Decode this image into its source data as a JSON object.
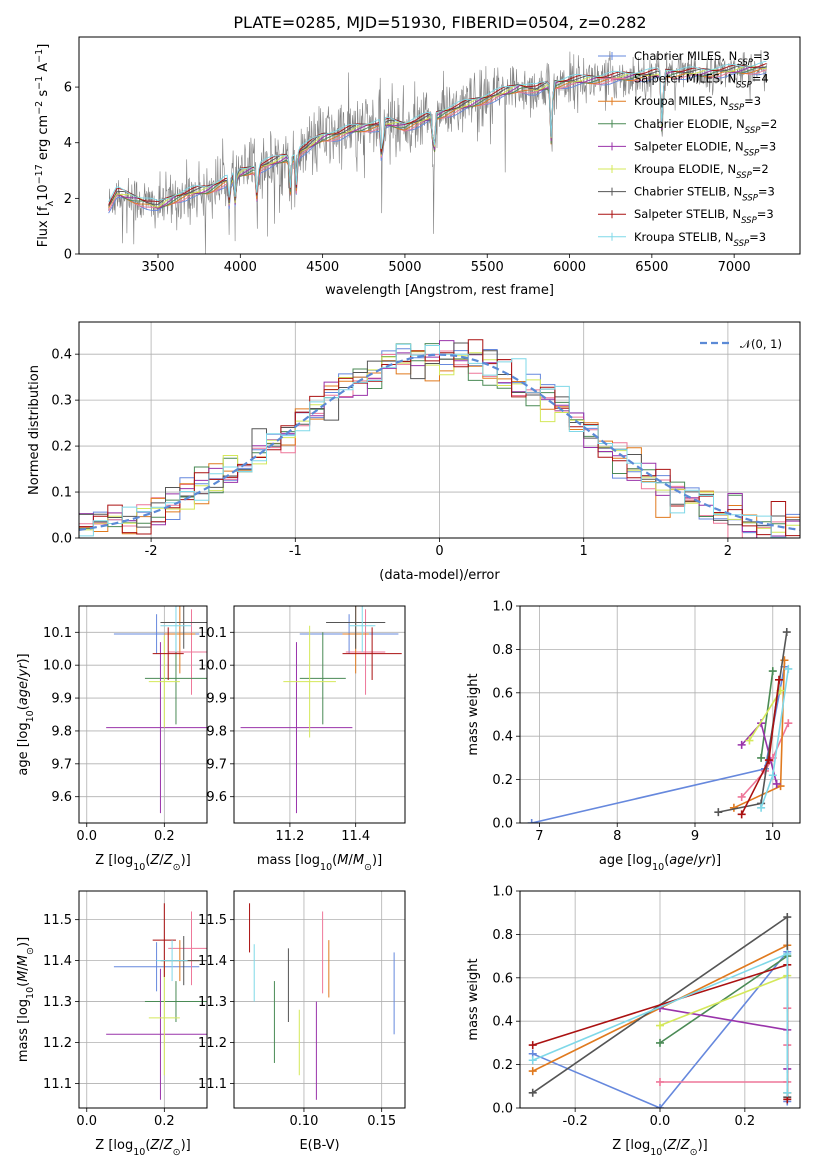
{
  "figure": {
    "title": "PLATE=0285, MJD=51930, FIBERID=0504, z=0.282"
  },
  "series_styles": [
    {
      "name": "Chabrier MILES, N_SSP=3",
      "color": "#6688dd"
    },
    {
      "name": "Salpeter MILES, N_SSP=4",
      "color": "#ee7799"
    },
    {
      "name": "Kroupa MILES, N_SSP=3",
      "color": "#e07a1f"
    },
    {
      "name": "Chabrier ELODIE, N_SSP=2",
      "color": "#4a8a55"
    },
    {
      "name": "Salpeter ELODIE, N_SSP=3",
      "color": "#9933aa"
    },
    {
      "name": "Kroupa ELODIE, N_SSP=2",
      "color": "#d4e85a"
    },
    {
      "name": "Chabrier STELIB, N_SSP=3",
      "color": "#555555"
    },
    {
      "name": "Salpeter STELIB, N_SSP=3",
      "color": "#aa1111"
    },
    {
      "name": "Kroupa STELIB, N_SSP=3",
      "color": "#7fd8e8"
    }
  ],
  "chart_data": [
    {
      "id": "spectrum",
      "type": "line",
      "xlabel": "wavelength [Angstrom, rest frame]",
      "ylabel": "Flux [f_λ 10^-17 erg cm^-2 s^-1 A^-1]",
      "xlim": [
        3020,
        7400
      ],
      "ylim": [
        0,
        7.8
      ],
      "xticks": [
        3500,
        4000,
        4500,
        5000,
        5500,
        6000,
        6500,
        7000
      ],
      "yticks": [
        0,
        2,
        4,
        6
      ],
      "grid": false,
      "legend": "top-right",
      "legend_entries": [
        "Chabrier MILES, N_SSP=3",
        "Salpeter MILES, N_SSP=4",
        "Kroupa MILES, N_SSP=3",
        "Chabrier ELODIE, N_SSP=2",
        "Salpeter ELODIE, N_SSP=3",
        "Kroupa ELODIE, N_SSP=2",
        "Chabrier STELIB, N_SSP=3",
        "Salpeter STELIB, N_SSP=3",
        "Kroupa STELIB, N_SSP=3"
      ],
      "data_color": "#808080",
      "continuum_knots": {
        "x": [
          3200,
          3250,
          3300,
          3400,
          3500,
          3600,
          3700,
          3800,
          3900,
          4000,
          4100,
          4200,
          4300,
          4400,
          4500,
          4600,
          4700,
          4800,
          4900,
          5000,
          5100,
          5200,
          5300,
          5400,
          5500,
          5600,
          5700,
          5800,
          5900,
          6000,
          6200,
          6400,
          6600,
          6800,
          7000,
          7200
        ],
        "y": [
          1.7,
          2.2,
          2.1,
          1.9,
          1.7,
          2.0,
          2.2,
          2.3,
          2.6,
          2.9,
          3.1,
          3.3,
          3.5,
          3.8,
          4.2,
          4.3,
          4.5,
          4.6,
          4.7,
          4.6,
          4.8,
          5.0,
          5.2,
          5.4,
          5.6,
          5.8,
          6.0,
          5.9,
          6.1,
          6.2,
          6.3,
          6.4,
          6.5,
          6.5,
          6.6,
          6.7
        ]
      },
      "absorption_lines": [
        3934,
        3969,
        4102,
        4304,
        4340,
        4861,
        5175,
        5890,
        6563
      ]
    },
    {
      "id": "residual_histogram",
      "type": "line",
      "xlabel": "(data-model)/error",
      "ylabel": "Normed distribution",
      "xlim": [
        -2.5,
        2.5
      ],
      "ylim": [
        0,
        0.47
      ],
      "xticks": [
        -2,
        -1,
        0,
        1,
        2
      ],
      "yticks": [
        0.0,
        0.1,
        0.2,
        0.3,
        0.4
      ],
      "grid": true,
      "legend": "top-right",
      "reference": {
        "label": "𝒩(0, 1)",
        "mean": 0,
        "sigma": 1,
        "style": "dashed",
        "color": "#5b8ad6"
      },
      "bins": [
        -2.5,
        2.5,
        50
      ]
    },
    {
      "id": "age_vs_Z",
      "type": "scatter",
      "xlabel": "Z [log10(Z/Z⊙)]",
      "ylabel": "age [log10(age/yr)]",
      "xlim": [
        -0.02,
        0.31
      ],
      "ylim": [
        9.52,
        10.18
      ],
      "xticks": [
        0.0,
        0.2
      ],
      "yticks": [
        9.6,
        9.7,
        9.8,
        9.9,
        10.0,
        10.1
      ],
      "grid": true,
      "points": [
        {
          "x": 0.18,
          "y": 10.095,
          "xerr": 0.11,
          "yerr": 0.06
        },
        {
          "x": 0.27,
          "y": 10.04,
          "xerr": 0.06,
          "yerr": 0.13
        },
        {
          "x": 0.24,
          "y": 10.095,
          "xerr": 0.04,
          "yerr": 0.12
        },
        {
          "x": 0.23,
          "y": 9.96,
          "xerr": 0.08,
          "yerr": 0.14
        },
        {
          "x": 0.19,
          "y": 9.81,
          "xerr": 0.14,
          "yerr": 0.26
        },
        {
          "x": 0.2,
          "y": 9.95,
          "xerr": 0.04,
          "yerr": 0.14
        },
        {
          "x": 0.25,
          "y": 10.13,
          "xerr": 0.06,
          "yerr": 0.08
        },
        {
          "x": 0.21,
          "y": 10.035,
          "xerr": 0.04,
          "yerr": 0.08
        },
        {
          "x": 0.23,
          "y": 10.12,
          "xerr": 0.04,
          "yerr": 0.08
        }
      ]
    },
    {
      "id": "age_vs_mass",
      "type": "scatter",
      "xlabel": "mass [log10(M/M⊙)]",
      "ylabel": "",
      "xlim": [
        11.03,
        11.55
      ],
      "ylim": [
        9.52,
        10.18
      ],
      "xticks": [
        11.2,
        11.4
      ],
      "yticks": [
        9.6,
        9.7,
        9.8,
        9.9,
        10.0,
        10.1
      ],
      "grid": true,
      "points": [
        {
          "x": 11.38,
          "y": 10.095,
          "xerr": 0.15,
          "yerr": 0.06
        },
        {
          "x": 11.43,
          "y": 10.04,
          "xerr": 0.06,
          "yerr": 0.13
        },
        {
          "x": 11.4,
          "y": 10.095,
          "xerr": 0.04,
          "yerr": 0.12
        },
        {
          "x": 11.3,
          "y": 9.96,
          "xerr": 0.07,
          "yerr": 0.14
        },
        {
          "x": 11.22,
          "y": 9.81,
          "xerr": 0.17,
          "yerr": 0.26
        },
        {
          "x": 11.26,
          "y": 9.95,
          "xerr": 0.08,
          "yerr": 0.17
        },
        {
          "x": 11.4,
          "y": 10.13,
          "xerr": 0.09,
          "yerr": 0.08
        },
        {
          "x": 11.45,
          "y": 10.035,
          "xerr": 0.09,
          "yerr": 0.08
        },
        {
          "x": 11.42,
          "y": 10.12,
          "xerr": 0.04,
          "yerr": 0.08
        }
      ]
    },
    {
      "id": "weight_vs_age",
      "type": "line",
      "xlabel": "age [log10(age/yr)]",
      "ylabel": "mass weight",
      "xlim": [
        6.75,
        10.35
      ],
      "ylim": [
        0,
        1.0
      ],
      "xticks": [
        7,
        8,
        9,
        10
      ],
      "yticks": [
        0.0,
        0.2,
        0.4,
        0.6,
        0.8,
        1.0
      ],
      "grid": true,
      "series": [
        {
          "x": [
            6.9,
            9.9,
            10.15
          ],
          "y": [
            0.0,
            0.25,
            0.72
          ]
        },
        {
          "x": [
            9.6,
            9.9,
            10.0,
            10.2
          ],
          "y": [
            0.12,
            0.24,
            0.3,
            0.46
          ]
        },
        {
          "x": [
            9.5,
            10.1,
            10.15
          ],
          "y": [
            0.07,
            0.17,
            0.75
          ]
        },
        {
          "x": [
            9.85,
            10.0
          ],
          "y": [
            0.3,
            0.7
          ]
        },
        {
          "x": [
            9.6,
            9.85,
            10.05
          ],
          "y": [
            0.36,
            0.46,
            0.18
          ]
        },
        {
          "x": [
            9.7,
            10.1
          ],
          "y": [
            0.38,
            0.61
          ]
        },
        {
          "x": [
            9.3,
            9.85,
            10.18
          ],
          "y": [
            0.05,
            0.09,
            0.88
          ]
        },
        {
          "x": [
            9.6,
            9.95,
            10.08
          ],
          "y": [
            0.04,
            0.29,
            0.66
          ]
        },
        {
          "x": [
            9.85,
            10.0,
            10.2
          ],
          "y": [
            0.07,
            0.22,
            0.71
          ]
        }
      ]
    },
    {
      "id": "mass_vs_Z",
      "type": "scatter",
      "xlabel": "Z [log10(Z/Z⊙)]",
      "ylabel": "mass [log10(M/M⊙)]",
      "xlim": [
        -0.02,
        0.31
      ],
      "ylim": [
        11.04,
        11.57
      ],
      "xticks": [
        0.0,
        0.2
      ],
      "yticks": [
        11.1,
        11.2,
        11.3,
        11.4,
        11.5
      ],
      "grid": true,
      "points": [
        {
          "x": 0.18,
          "y": 11.385,
          "xerr": 0.11,
          "yerr": 0.06
        },
        {
          "x": 0.27,
          "y": 11.43,
          "xerr": 0.06,
          "yerr": 0.09
        },
        {
          "x": 0.24,
          "y": 11.4,
          "xerr": 0.05,
          "yerr": 0.05
        },
        {
          "x": 0.23,
          "y": 11.3,
          "xerr": 0.08,
          "yerr": 0.05
        },
        {
          "x": 0.19,
          "y": 11.22,
          "xerr": 0.14,
          "yerr": 0.16
        },
        {
          "x": 0.2,
          "y": 11.26,
          "xerr": 0.04,
          "yerr": 0.14
        },
        {
          "x": 0.25,
          "y": 11.4,
          "xerr": 0.06,
          "yerr": 0.06
        },
        {
          "x": 0.2,
          "y": 11.45,
          "xerr": 0.03,
          "yerr": 0.09
        },
        {
          "x": 0.22,
          "y": 11.4,
          "xerr": 0.04,
          "yerr": 0.05
        }
      ]
    },
    {
      "id": "mass_vs_ebv",
      "type": "scatter",
      "xlabel": "E(B-V)",
      "ylabel": "",
      "xlim": [
        0.055,
        0.165
      ],
      "ylim": [
        11.04,
        11.57
      ],
      "xticks": [
        0.05,
        0.1,
        0.15
      ],
      "yticks": [
        11.1,
        11.2,
        11.3,
        11.4,
        11.5
      ],
      "grid": true,
      "points": [
        {
          "x": 0.158,
          "y": 11.32,
          "xerr": 0,
          "yerr": 0.1
        },
        {
          "x": 0.112,
          "y": 11.42,
          "xerr": 0,
          "yerr": 0.1
        },
        {
          "x": 0.116,
          "y": 11.38,
          "xerr": 0,
          "yerr": 0.07
        },
        {
          "x": 0.081,
          "y": 11.25,
          "xerr": 0,
          "yerr": 0.1
        },
        {
          "x": 0.108,
          "y": 11.18,
          "xerr": 0,
          "yerr": 0.12
        },
        {
          "x": 0.097,
          "y": 11.2,
          "xerr": 0,
          "yerr": 0.08
        },
        {
          "x": 0.09,
          "y": 11.34,
          "xerr": 0,
          "yerr": 0.09
        },
        {
          "x": 0.065,
          "y": 11.48,
          "xerr": 0,
          "yerr": 0.06
        },
        {
          "x": 0.068,
          "y": 11.37,
          "xerr": 0,
          "yerr": 0.07
        }
      ]
    },
    {
      "id": "weight_vs_Z",
      "type": "line",
      "xlabel": "Z [log10(Z/Z⊙)]",
      "ylabel": "mass weight",
      "xlim": [
        -0.33,
        0.33
      ],
      "ylim": [
        0,
        1.0
      ],
      "xticks": [
        -0.2,
        0.0,
        0.2
      ],
      "yticks": [
        0.0,
        0.2,
        0.4,
        0.6,
        0.8,
        1.0
      ],
      "grid": true,
      "series": [
        {
          "x": [
            -0.3,
            0.0,
            0.3,
            0.3
          ],
          "y": [
            0.25,
            0.0,
            0.72,
            0.03
          ]
        },
        {
          "x": [
            0.0,
            0.3,
            0.3,
            0.3
          ],
          "y": [
            0.12,
            0.12,
            0.29,
            0.46
          ]
        },
        {
          "x": [
            -0.3,
            0.3,
            0.3
          ],
          "y": [
            0.17,
            0.75,
            0.07
          ]
        },
        {
          "x": [
            0.0,
            0.3
          ],
          "y": [
            0.3,
            0.7
          ]
        },
        {
          "x": [
            0.0,
            0.3,
            0.3
          ],
          "y": [
            0.46,
            0.36,
            0.18
          ]
        },
        {
          "x": [
            0.0,
            0.3
          ],
          "y": [
            0.38,
            0.61
          ]
        },
        {
          "x": [
            -0.3,
            0.3,
            0.3
          ],
          "y": [
            0.07,
            0.88,
            0.05
          ]
        },
        {
          "x": [
            -0.3,
            0.3,
            0.3
          ],
          "y": [
            0.29,
            0.66,
            0.04
          ]
        },
        {
          "x": [
            -0.3,
            0.3,
            0.3
          ],
          "y": [
            0.22,
            0.71,
            0.07
          ]
        }
      ]
    }
  ]
}
